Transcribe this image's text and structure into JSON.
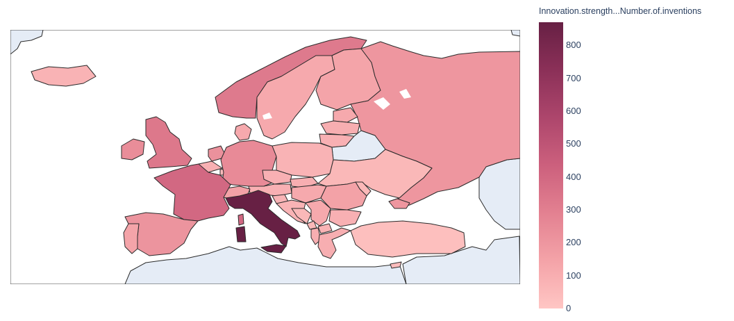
{
  "map": {
    "region": "Europe",
    "frame": "natural-earth"
  },
  "colorbar": {
    "title": "Innovation.strength...Number.of.inventions",
    "min": 0,
    "max": 870,
    "ticks": [
      "0",
      "100",
      "200",
      "300",
      "400",
      "500",
      "600",
      "700",
      "800"
    ],
    "colors": [
      "#ffc6c4",
      "#f4a3a8",
      "#e38191",
      "#cc607d",
      "#ad466c",
      "#8b3058",
      "#672044"
    ]
  },
  "countries": [
    {
      "name": "Italy",
      "value": 870
    },
    {
      "name": "France",
      "value": 400
    },
    {
      "name": "United Kingdom",
      "value": 330
    },
    {
      "name": "Norway",
      "value": 320
    },
    {
      "name": "Germany",
      "value": 250
    },
    {
      "name": "Spain",
      "value": 210
    },
    {
      "name": "Russia",
      "value": 200
    },
    {
      "name": "Finland",
      "value": 140
    },
    {
      "name": "Sweden",
      "value": 120
    },
    {
      "name": "Ireland",
      "value": 240
    },
    {
      "name": "Poland",
      "value": 80
    },
    {
      "name": "Ukraine",
      "value": 60
    },
    {
      "name": "Turkey",
      "value": 30
    },
    {
      "name": "Iceland",
      "value": 80
    },
    {
      "name": "Portugal",
      "value": 140
    },
    {
      "name": "Netherlands",
      "value": 220
    },
    {
      "name": "Belgium",
      "value": 90
    },
    {
      "name": "Denmark",
      "value": 120
    },
    {
      "name": "Estonia",
      "value": 120
    },
    {
      "name": "Latvia",
      "value": 100
    },
    {
      "name": "Lithuania",
      "value": 90
    },
    {
      "name": "Czechia",
      "value": 90
    },
    {
      "name": "Austria",
      "value": 90
    },
    {
      "name": "Switzerland",
      "value": 150
    },
    {
      "name": "Hungary",
      "value": 120
    },
    {
      "name": "Romania",
      "value": 150
    },
    {
      "name": "Bulgaria",
      "value": 90
    },
    {
      "name": "Greece",
      "value": 100
    },
    {
      "name": "Serbia",
      "value": 120
    },
    {
      "name": "Croatia",
      "value": 80
    },
    {
      "name": "Slovakia",
      "value": 100
    },
    {
      "name": "Slovenia",
      "value": 80
    },
    {
      "name": "Bosnia and Herzegovina",
      "value": 60
    },
    {
      "name": "Albania",
      "value": 100
    },
    {
      "name": "North Macedonia",
      "value": 80
    },
    {
      "name": "Montenegro",
      "value": 60
    },
    {
      "name": "Moldova",
      "value": 60
    },
    {
      "name": "Georgia",
      "value": 200
    },
    {
      "name": "Luxembourg",
      "value": 40
    },
    {
      "name": "Cyprus",
      "value": 40
    },
    {
      "name": "Belarus",
      "value": null
    }
  ]
}
